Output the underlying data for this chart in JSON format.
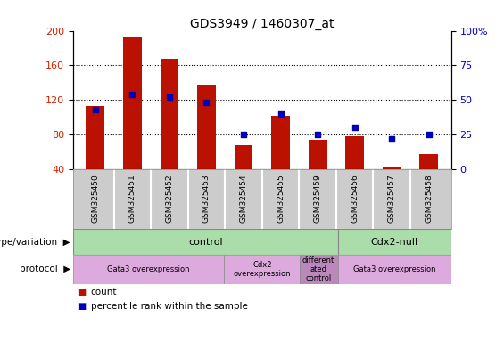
{
  "title": "GDS3949 / 1460307_at",
  "samples": [
    "GSM325450",
    "GSM325451",
    "GSM325452",
    "GSM325453",
    "GSM325454",
    "GSM325455",
    "GSM325459",
    "GSM325456",
    "GSM325457",
    "GSM325458"
  ],
  "counts": [
    113,
    193,
    168,
    137,
    68,
    102,
    74,
    78,
    42,
    58
  ],
  "percentiles": [
    43,
    54,
    52,
    48,
    25,
    40,
    25,
    30,
    22,
    25
  ],
  "ylim_left": [
    40,
    200
  ],
  "ylim_right": [
    0,
    100
  ],
  "yticks_left": [
    40,
    80,
    120,
    160,
    200
  ],
  "yticks_right": [
    0,
    25,
    50,
    75,
    100
  ],
  "bar_color": "#bb1100",
  "dot_color": "#0000bb",
  "xtick_bg": "#cccccc",
  "bg_color": "#ffffff",
  "tick_label_color_left": "#cc2200",
  "tick_label_color_right": "#0000cc",
  "geno_color_control": "#aaddaa",
  "geno_color_cdx2null": "#aaddaa",
  "proto_color_gata3": "#ddaadd",
  "proto_color_cdx2": "#ddaadd",
  "proto_color_diff": "#bb88bb"
}
